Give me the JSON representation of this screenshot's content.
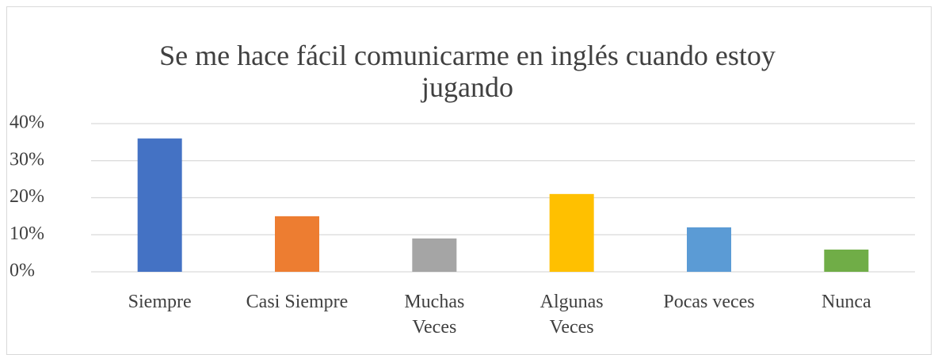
{
  "chart_data": {
    "type": "bar",
    "title": "Se me hace fácil comunicarme en inglés cuando estoy jugando",
    "categories": [
      "Siempre",
      "Casi Siempre",
      "Muchas Veces",
      "Algunas Veces",
      "Pocas veces",
      "Nunca"
    ],
    "values": [
      36,
      15,
      9,
      21,
      12,
      6
    ],
    "colors": [
      "#4472c4",
      "#ed7d31",
      "#a5a5a5",
      "#ffc000",
      "#5b9bd5",
      "#70ad47"
    ],
    "ylim": [
      0,
      40
    ],
    "yticks": [
      {
        "value": 0,
        "label": "0%"
      },
      {
        "value": 10,
        "label": "10%"
      },
      {
        "value": 20,
        "label": "20%"
      },
      {
        "value": 30,
        "label": "30%"
      },
      {
        "value": 40,
        "label": "40%"
      }
    ],
    "grid": true
  }
}
